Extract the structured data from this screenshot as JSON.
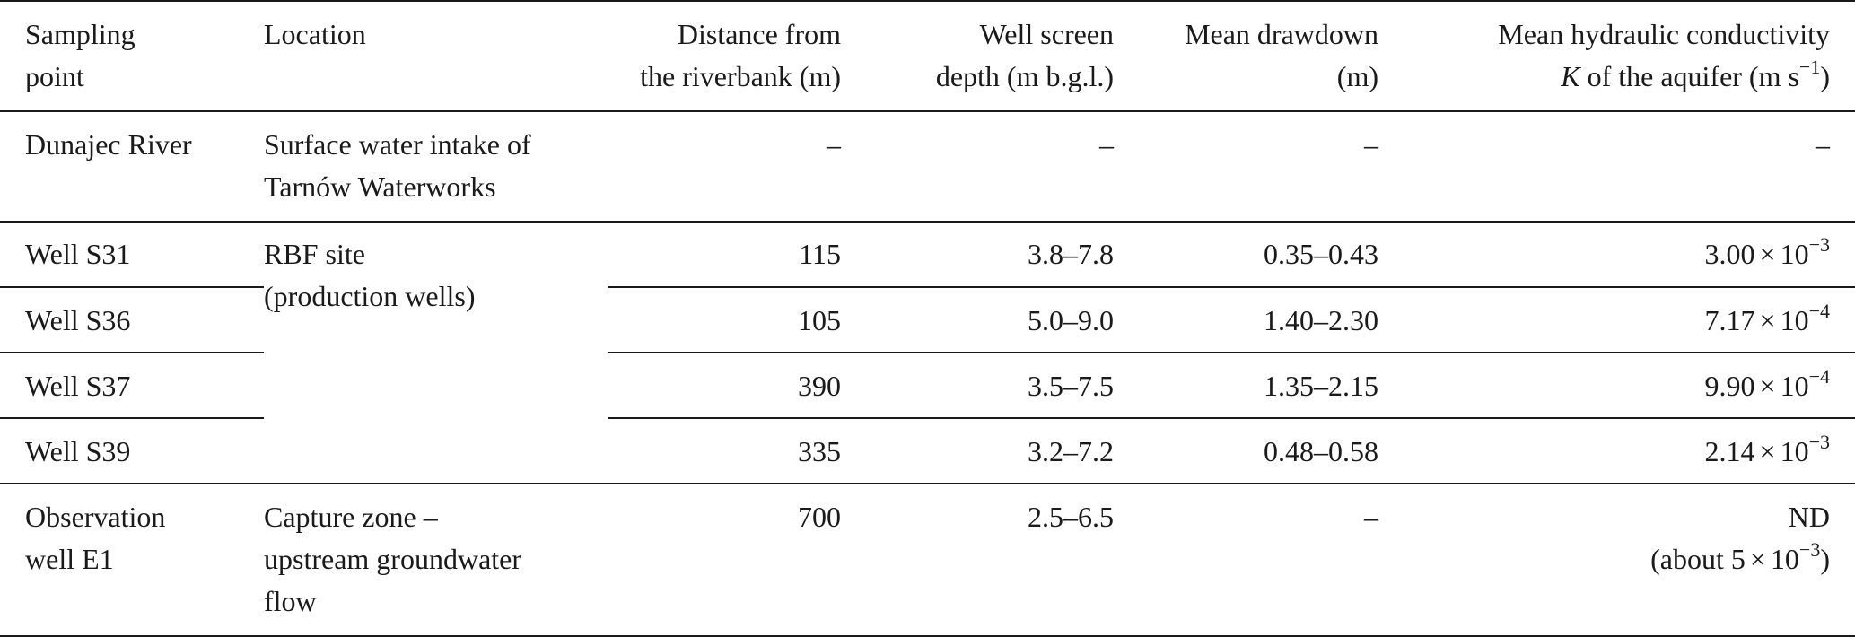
{
  "headers": {
    "sampling_point": [
      "Sampling",
      "point"
    ],
    "location": "Location",
    "distance": [
      "Distance from",
      "the riverbank (m)"
    ],
    "screen_depth": [
      "Well screen",
      "depth (m b.g.l.)"
    ],
    "drawdown": [
      "Mean drawdown",
      "(m)"
    ],
    "conductivity_line1": "Mean hydraulic conductivity",
    "conductivity_k": "K",
    "conductivity_rest": " of the aquifer (m s",
    "conductivity_exp": "−1",
    "conductivity_close": ")"
  },
  "rows": [
    {
      "point": [
        "Dunajec River"
      ],
      "location": [
        "Surface water intake of",
        "Tarnów Waterworks"
      ],
      "distance": "–",
      "depth": "–",
      "drawdown": "–",
      "k": "–"
    },
    {
      "point": [
        "Well S31"
      ],
      "location": [
        "RBF site",
        "(production wells)"
      ],
      "distance": "115",
      "depth": "3.8–7.8",
      "drawdown": "0.35–0.43",
      "k_mantissa": "3.00",
      "k_exp": "−3"
    },
    {
      "point": [
        "Well S36"
      ],
      "distance": "105",
      "depth": "5.0–9.0",
      "drawdown": "1.40–2.30",
      "k_mantissa": "7.17",
      "k_exp": "−4"
    },
    {
      "point": [
        "Well S37"
      ],
      "distance": "390",
      "depth": "3.5–7.5",
      "drawdown": "1.35–2.15",
      "k_mantissa": "9.90",
      "k_exp": "−4"
    },
    {
      "point": [
        "Well S39"
      ],
      "distance": "335",
      "depth": "3.2–7.2",
      "drawdown": "0.48–0.58",
      "k_mantissa": "2.14",
      "k_exp": "−3"
    },
    {
      "point": [
        "Observation",
        "well E1"
      ],
      "location": [
        "Capture zone –",
        "upstream groundwater",
        "flow"
      ],
      "distance": "700",
      "depth": "2.5–6.5",
      "drawdown": "–",
      "k_line1": "ND",
      "k_line2_prefix": "(about 5",
      "k_line2_base": "10",
      "k_line2_exp": "−3",
      "k_line2_suffix": ")"
    }
  ],
  "symbols": {
    "times": "×",
    "ten": "10"
  }
}
